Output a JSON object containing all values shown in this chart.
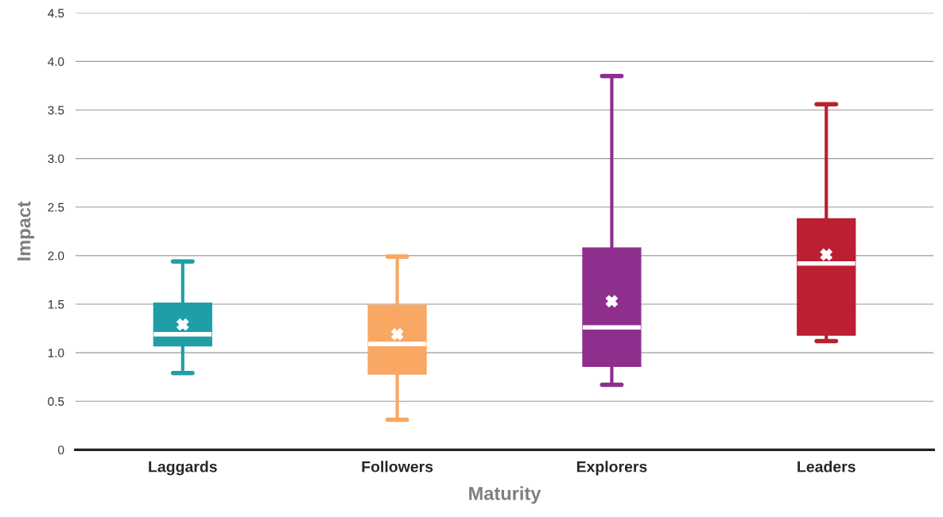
{
  "chart_data": {
    "type": "box",
    "xlabel": "Maturity",
    "ylabel": "Impact",
    "categories": [
      "Laggards",
      "Followers",
      "Explorers",
      "Leaders"
    ],
    "colors": [
      "#1f9ea8",
      "#f8a862",
      "#8e2f8e",
      "#bb1f31"
    ],
    "boxes": [
      {
        "low": 0.79,
        "q1": 1.07,
        "median": 1.19,
        "q3": 1.51,
        "high": 1.94,
        "mean": 1.29
      },
      {
        "low": 0.31,
        "q1": 0.78,
        "median": 1.09,
        "q3": 1.49,
        "high": 1.99,
        "mean": 1.19
      },
      {
        "low": 0.67,
        "q1": 0.86,
        "median": 1.26,
        "q3": 2.08,
        "high": 3.85,
        "mean": 1.53
      },
      {
        "low": 1.12,
        "q1": 1.18,
        "median": 1.92,
        "q3": 2.38,
        "high": 3.56,
        "mean": 2.01
      }
    ],
    "ylim": [
      0,
      4.5
    ],
    "yticks": [
      0,
      0.5,
      {
        "value": 1,
        "label": "1.0"
      },
      1.5,
      {
        "value": 2,
        "label": "2.0"
      },
      2.5,
      {
        "value": 3,
        "label": "3.0"
      },
      3.5,
      {
        "value": 4,
        "label": "4.0"
      },
      4.5
    ],
    "grid": "y",
    "marker": "cross"
  }
}
